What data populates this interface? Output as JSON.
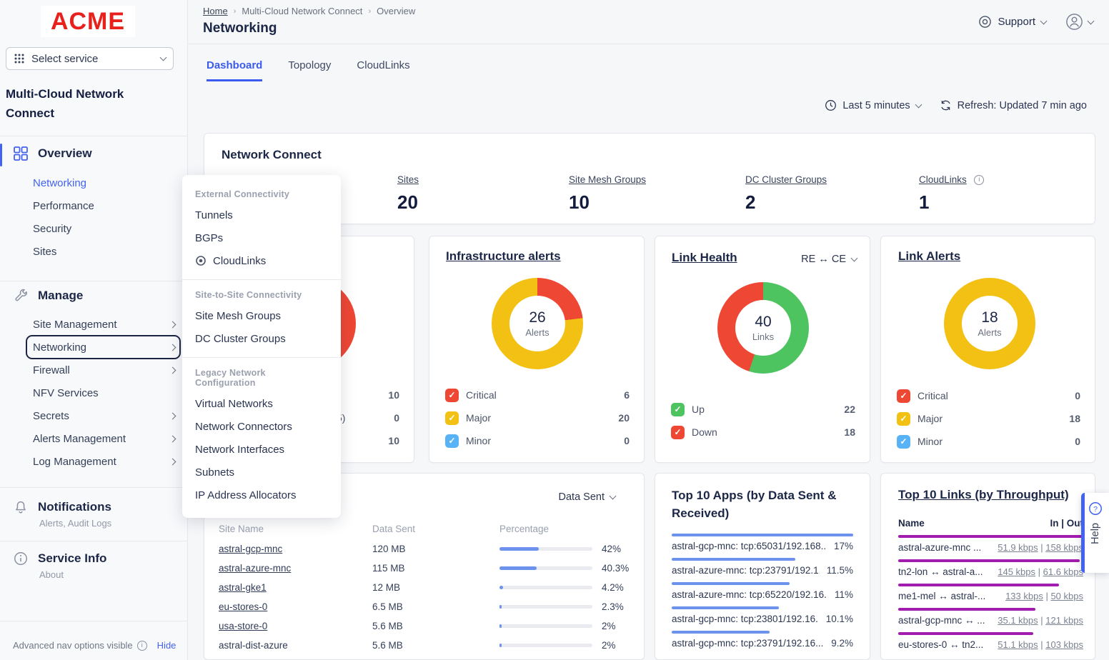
{
  "colors": {
    "accent": "#4262f0",
    "critical": "#ee4733",
    "major": "#f2c114",
    "minor": "#57b3f5",
    "up": "#4dc45f",
    "down": "#ee4733",
    "bar_blue": "#6d92ee",
    "bar_magenta": "#a21caf"
  },
  "sidebar": {
    "logo": "ACME",
    "service_selector": {
      "placeholder": "Select service"
    },
    "product_title": "Multi-Cloud Network Connect",
    "overview": {
      "label": "Overview",
      "items": [
        {
          "label": "Networking",
          "active": true
        },
        {
          "label": "Performance",
          "active": false
        },
        {
          "label": "Security",
          "active": false
        },
        {
          "label": "Sites",
          "active": false
        }
      ]
    },
    "manage": {
      "label": "Manage",
      "items": [
        {
          "label": "Site Management",
          "chevron": true,
          "focused": false
        },
        {
          "label": "Networking",
          "chevron": true,
          "focused": true
        },
        {
          "label": "Firewall",
          "chevron": true,
          "focused": false
        },
        {
          "label": "NFV Services",
          "chevron": false,
          "focused": false
        },
        {
          "label": "Secrets",
          "chevron": true,
          "focused": false
        },
        {
          "label": "Alerts Management",
          "chevron": true,
          "focused": false
        },
        {
          "label": "Log Management",
          "chevron": true,
          "focused": false
        }
      ]
    },
    "notifications": {
      "label": "Notifications",
      "subtitle": "Alerts, Audit Logs"
    },
    "service_info": {
      "label": "Service Info",
      "subtitle": "About"
    },
    "footer": {
      "text": "Advanced nav options visible",
      "action": "Hide"
    }
  },
  "header": {
    "breadcrumb": [
      "Home",
      "Multi-Cloud Network Connect",
      "Overview"
    ],
    "title": "Networking",
    "support_label": "Support",
    "tabs": [
      {
        "label": "Dashboard",
        "active": true
      },
      {
        "label": "Topology",
        "active": false
      },
      {
        "label": "CloudLinks",
        "active": false
      }
    ],
    "time_range": "Last 5 minutes",
    "refresh_status": "Refresh: Updated 7 min ago"
  },
  "menu": {
    "sections": [
      {
        "header": "External Connectivity",
        "items": [
          {
            "label": "Tunnels",
            "icon": null
          },
          {
            "label": "BGPs",
            "icon": null
          },
          {
            "label": "CloudLinks",
            "icon": "target-icon"
          }
        ]
      },
      {
        "header": "Site-to-Site Connectivity",
        "items": [
          {
            "label": "Site Mesh Groups",
            "icon": null
          },
          {
            "label": "DC Cluster Groups",
            "icon": null
          }
        ]
      },
      {
        "header": "Legacy Network Configuration",
        "items": [
          {
            "label": "Virtual Networks",
            "icon": null
          },
          {
            "label": "Network Connectors",
            "icon": null
          },
          {
            "label": "Network Interfaces",
            "icon": null
          },
          {
            "label": "Subnets",
            "icon": null
          },
          {
            "label": "IP Address Allocators",
            "icon": null
          }
        ]
      }
    ]
  },
  "network_connect": {
    "title": "Network Connect",
    "stats": [
      {
        "label": "Sites",
        "value": "20",
        "info": false
      },
      {
        "label": "Site Mesh Groups",
        "value": "10",
        "info": false
      },
      {
        "label": "DC Cluster Groups",
        "value": "2",
        "info": false
      },
      {
        "label": "CloudLinks",
        "value": "1",
        "info": true
      }
    ]
  },
  "cards": {
    "partial": {
      "donut": {
        "segments": [
          {
            "color": "#ee4733",
            "value": 1
          }
        ]
      },
      "legend": [
        {
          "fragment": "",
          "value": "10"
        },
        {
          "fragment": "5)",
          "value": "0"
        },
        {
          "fragment": "",
          "value": "10"
        }
      ]
    },
    "infrastructure_alerts": {
      "title": "Infrastructure alerts",
      "center_value": "26",
      "center_label": "Alerts",
      "donut": {
        "segments": [
          {
            "color": "#ee4733",
            "value": 6
          },
          {
            "color": "#f2c114",
            "value": 20
          }
        ]
      },
      "legend": [
        {
          "label": "Critical",
          "color": "#ee4733",
          "value": "6"
        },
        {
          "label": "Major",
          "color": "#f2c114",
          "value": "20"
        },
        {
          "label": "Minor",
          "color": "#57b3f5",
          "value": "0"
        }
      ]
    },
    "link_health": {
      "title": "Link Health",
      "selector": "RE ↔ CE",
      "center_value": "40",
      "center_label": "Links",
      "donut": {
        "segments": [
          {
            "color": "#4dc45f",
            "value": 22
          },
          {
            "color": "#ee4733",
            "value": 18
          }
        ]
      },
      "legend": [
        {
          "label": "Up",
          "color": "#4dc45f",
          "value": "22"
        },
        {
          "label": "Down",
          "color": "#ee4733",
          "value": "18"
        }
      ]
    },
    "link_alerts": {
      "title": "Link Alerts",
      "center_value": "18",
      "center_label": "Alerts",
      "donut": {
        "segments": [
          {
            "color": "#f2c114",
            "value": 18
          }
        ]
      },
      "legend": [
        {
          "label": "Critical",
          "color": "#ee4733",
          "value": "0"
        },
        {
          "label": "Major",
          "color": "#f2c114",
          "value": "18"
        },
        {
          "label": "Minor",
          "color": "#57b3f5",
          "value": "0"
        }
      ]
    },
    "sites_table": {
      "selector": "Data Sent",
      "columns": [
        "Site Name",
        "Data Sent",
        "Percentage"
      ],
      "rows": [
        {
          "name": "astral-gcp-mnc",
          "sent": "120 MB",
          "pct": "42%",
          "pct_num": 42,
          "link": true
        },
        {
          "name": "astral-azure-mnc",
          "sent": "115 MB",
          "pct": "40.3%",
          "pct_num": 40.3,
          "link": true
        },
        {
          "name": "astral-gke1",
          "sent": "12 MB",
          "pct": "4.2%",
          "pct_num": 4.2,
          "link": true
        },
        {
          "name": "eu-stores-0",
          "sent": "6.5 MB",
          "pct": "2.3%",
          "pct_num": 2.3,
          "link": true
        },
        {
          "name": "usa-store-0",
          "sent": "5.6 MB",
          "pct": "2%",
          "pct_num": 2,
          "link": true
        },
        {
          "name": "astral-dist-azure",
          "sent": "5.6 MB",
          "pct": "2%",
          "pct_num": 2,
          "link": false
        }
      ]
    },
    "top_apps": {
      "title": "Top 10 Apps (by Data Sent & Received)",
      "rows": [
        {
          "name": "astral-gcp-mnc: tcp:65031/192.168....",
          "pct": "17%",
          "bar": 100
        },
        {
          "name": "astral-azure-mnc: tcp:23791/192.1...",
          "pct": "11.5%",
          "bar": 68
        },
        {
          "name": "astral-azure-mnc: tcp:65220/192.16...",
          "pct": "11%",
          "bar": 65
        },
        {
          "name": "astral-gcp-mnc: tcp:23801/192.16...",
          "pct": "10.1%",
          "bar": 59
        },
        {
          "name": "astral-gcp-mnc: tcp:23791/192.16...",
          "pct": "9.2%",
          "bar": 54
        }
      ]
    },
    "top_links": {
      "title": "Top 10 Links (by Throughput)",
      "name_header": "Name",
      "inout_header": "In | Out",
      "rows": [
        {
          "name": "astral-azure-mnc ...",
          "in": "51.9 kbps",
          "out": "158 kbps",
          "bar": 100
        },
        {
          "name": "tn2-lon ↔ astral-a...",
          "in": "145 kbps",
          "out": "61.6 kbps",
          "bar": 98
        },
        {
          "name": "me1-mel ↔ astral-...",
          "in": "133 kbps",
          "out": "50 kbps",
          "bar": 87
        },
        {
          "name": "astral-gcp-mnc ↔ ...",
          "in": "35.1 kbps",
          "out": "121 kbps",
          "bar": 74
        },
        {
          "name": "eu-stores-0 ↔ tn2...",
          "in": "51.1 kbps",
          "out": "103 kbps",
          "bar": 73
        }
      ]
    }
  },
  "help": {
    "label": "Help"
  }
}
